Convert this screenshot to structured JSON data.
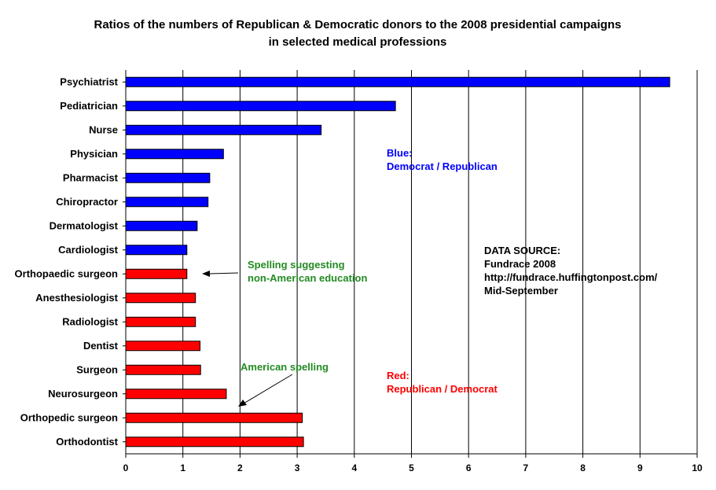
{
  "chart_data": {
    "type": "bar",
    "orientation": "horizontal",
    "title": "Ratios of the numbers of Republican & Democratic donors to the 2008 presidential campaigns",
    "subtitle": "in selected medical professions",
    "xlim": [
      0,
      10
    ],
    "xticks": [
      "0",
      "1",
      "2",
      "3",
      "4",
      "5",
      "6",
      "7",
      "8",
      "9",
      "10"
    ],
    "grid": "vertical",
    "categories": [
      "Psychiatrist",
      "Pediatrician",
      "Nurse",
      "Physician",
      "Pharmacist",
      "Chiropractor",
      "Dermatologist",
      "Cardiologist",
      "Orthopaedic surgeon",
      "Anesthesiologist",
      "Radiologist",
      "Dentist",
      "Surgeon",
      "Neurosurgeon",
      "Orthopedic surgeon",
      "Orthodontist"
    ],
    "values": [
      9.52,
      4.72,
      3.42,
      1.71,
      1.47,
      1.44,
      1.25,
      1.07,
      1.07,
      1.22,
      1.22,
      1.3,
      1.31,
      1.76,
      3.09,
      3.11
    ],
    "colors": [
      "#0000ff",
      "#0000ff",
      "#0000ff",
      "#0000ff",
      "#0000ff",
      "#0000ff",
      "#0000ff",
      "#0000ff",
      "#ff0000",
      "#ff0000",
      "#ff0000",
      "#ff0000",
      "#ff0000",
      "#ff0000",
      "#ff0000",
      "#ff0000"
    ],
    "annotations": {
      "blue_legend": {
        "lines": [
          "Blue:",
          "Democrat / Republican"
        ],
        "color": "#0000ff"
      },
      "red_legend": {
        "lines": [
          "Red:",
          "Republican / Democrat"
        ],
        "color": "#ff0000"
      },
      "data_source": {
        "lines": [
          "DATA SOURCE:",
          "Fundrace 2008",
          "http://fundrace.huffingtonpost.com/",
          "Mid-September"
        ],
        "color": "#000000"
      },
      "spelling_note": {
        "lines": [
          "Spelling suggesting",
          "non-American education"
        ],
        "color": "#228b22",
        "points_to": "Orthopaedic surgeon"
      },
      "american_note": {
        "lines": [
          "American spelling"
        ],
        "color": "#228b22",
        "points_to": "Orthopedic surgeon"
      }
    }
  }
}
